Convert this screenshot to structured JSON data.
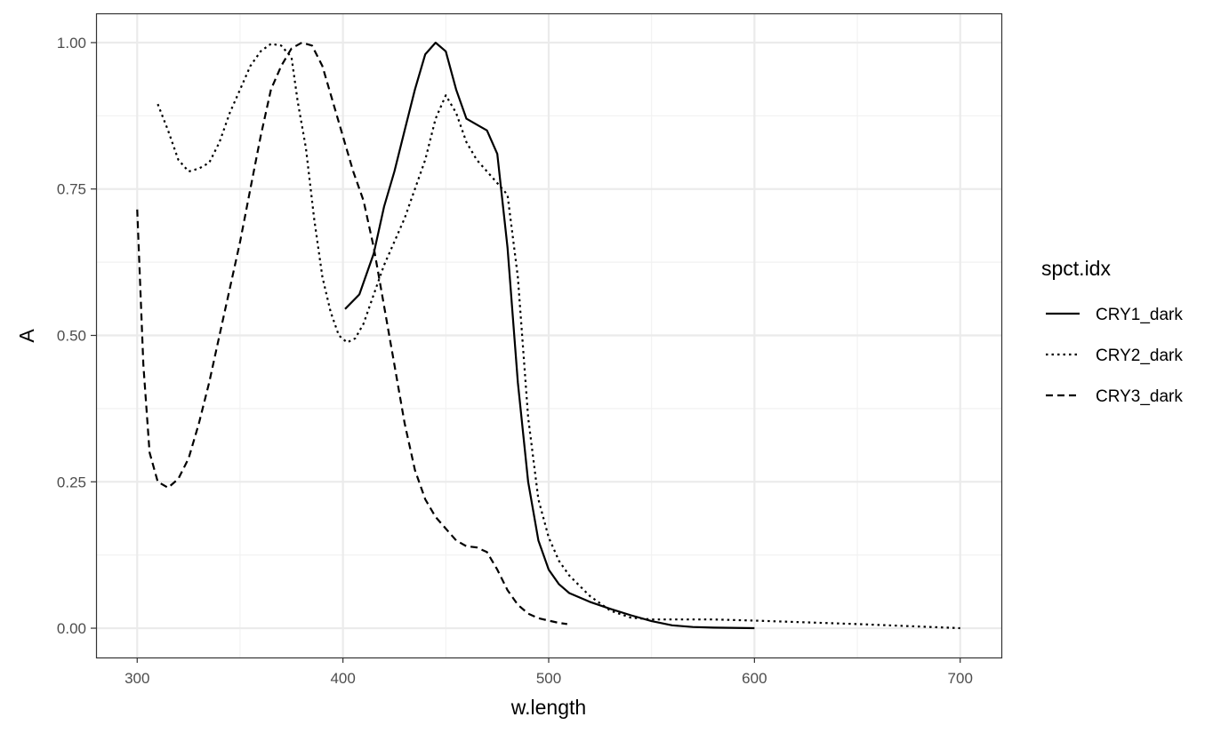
{
  "chart_data": {
    "type": "line",
    "title": "",
    "xlabel": "w.length",
    "ylabel": "A",
    "xlim": [
      280,
      720
    ],
    "ylim": [
      -0.05,
      1.05
    ],
    "x_ticks": [
      300,
      400,
      500,
      600,
      700
    ],
    "x_tick_labels": [
      "300",
      "400",
      "500",
      "600",
      "700"
    ],
    "y_ticks": [
      0,
      0.25,
      0.5,
      0.75,
      1.0
    ],
    "y_tick_labels": [
      "0.00",
      "0.25",
      "0.50",
      "0.75",
      "1.00"
    ],
    "grid": true,
    "legend": {
      "title": "spct.idx",
      "position": "right"
    },
    "series": [
      {
        "name": "CRY1_dark",
        "linetype": "solid",
        "points": [
          [
            401,
            0.545
          ],
          [
            408,
            0.57
          ],
          [
            415,
            0.64
          ],
          [
            420,
            0.72
          ],
          [
            425,
            0.78
          ],
          [
            430,
            0.85
          ],
          [
            435,
            0.92
          ],
          [
            440,
            0.98
          ],
          [
            445,
            1.0
          ],
          [
            450,
            0.985
          ],
          [
            455,
            0.92
          ],
          [
            460,
            0.87
          ],
          [
            465,
            0.86
          ],
          [
            470,
            0.85
          ],
          [
            475,
            0.81
          ],
          [
            480,
            0.65
          ],
          [
            485,
            0.42
          ],
          [
            490,
            0.25
          ],
          [
            495,
            0.15
          ],
          [
            500,
            0.1
          ],
          [
            505,
            0.075
          ],
          [
            510,
            0.06
          ],
          [
            520,
            0.045
          ],
          [
            530,
            0.033
          ],
          [
            540,
            0.022
          ],
          [
            550,
            0.012
          ],
          [
            560,
            0.005
          ],
          [
            570,
            0.002
          ],
          [
            580,
            0.001
          ],
          [
            600,
            0.0
          ]
        ]
      },
      {
        "name": "CRY2_dark",
        "linetype": "dotted",
        "points": [
          [
            310,
            0.895
          ],
          [
            315,
            0.85
          ],
          [
            320,
            0.8
          ],
          [
            325,
            0.78
          ],
          [
            330,
            0.785
          ],
          [
            335,
            0.795
          ],
          [
            340,
            0.83
          ],
          [
            345,
            0.88
          ],
          [
            350,
            0.92
          ],
          [
            355,
            0.96
          ],
          [
            360,
            0.985
          ],
          [
            365,
            0.998
          ],
          [
            370,
            0.995
          ],
          [
            375,
            0.975
          ],
          [
            378,
            0.9
          ],
          [
            382,
            0.82
          ],
          [
            386,
            0.7
          ],
          [
            390,
            0.6
          ],
          [
            394,
            0.54
          ],
          [
            398,
            0.5
          ],
          [
            402,
            0.488
          ],
          [
            406,
            0.495
          ],
          [
            410,
            0.52
          ],
          [
            415,
            0.57
          ],
          [
            420,
            0.62
          ],
          [
            425,
            0.66
          ],
          [
            430,
            0.7
          ],
          [
            435,
            0.75
          ],
          [
            440,
            0.8
          ],
          [
            445,
            0.87
          ],
          [
            450,
            0.91
          ],
          [
            455,
            0.88
          ],
          [
            460,
            0.83
          ],
          [
            465,
            0.8
          ],
          [
            470,
            0.78
          ],
          [
            475,
            0.76
          ],
          [
            480,
            0.74
          ],
          [
            485,
            0.6
          ],
          [
            490,
            0.36
          ],
          [
            495,
            0.22
          ],
          [
            500,
            0.155
          ],
          [
            505,
            0.115
          ],
          [
            510,
            0.09
          ],
          [
            520,
            0.055
          ],
          [
            530,
            0.03
          ],
          [
            540,
            0.018
          ],
          [
            550,
            0.015
          ],
          [
            580,
            0.015
          ],
          [
            600,
            0.013
          ],
          [
            650,
            0.007
          ],
          [
            700,
            0.0
          ]
        ]
      },
      {
        "name": "CRY3_dark",
        "linetype": "dashed",
        "points": [
          [
            300,
            0.715
          ],
          [
            303,
            0.45
          ],
          [
            306,
            0.3
          ],
          [
            310,
            0.25
          ],
          [
            315,
            0.24
          ],
          [
            320,
            0.255
          ],
          [
            325,
            0.29
          ],
          [
            330,
            0.35
          ],
          [
            335,
            0.42
          ],
          [
            340,
            0.5
          ],
          [
            345,
            0.58
          ],
          [
            350,
            0.66
          ],
          [
            355,
            0.75
          ],
          [
            360,
            0.84
          ],
          [
            365,
            0.92
          ],
          [
            370,
            0.96
          ],
          [
            375,
            0.99
          ],
          [
            380,
            1.0
          ],
          [
            385,
            0.995
          ],
          [
            390,
            0.96
          ],
          [
            395,
            0.9
          ],
          [
            400,
            0.84
          ],
          [
            405,
            0.78
          ],
          [
            410,
            0.73
          ],
          [
            415,
            0.65
          ],
          [
            420,
            0.55
          ],
          [
            425,
            0.45
          ],
          [
            430,
            0.35
          ],
          [
            435,
            0.27
          ],
          [
            440,
            0.22
          ],
          [
            445,
            0.19
          ],
          [
            450,
            0.17
          ],
          [
            455,
            0.15
          ],
          [
            460,
            0.14
          ],
          [
            465,
            0.138
          ],
          [
            470,
            0.13
          ],
          [
            475,
            0.1
          ],
          [
            480,
            0.065
          ],
          [
            485,
            0.04
          ],
          [
            490,
            0.025
          ],
          [
            495,
            0.017
          ],
          [
            500,
            0.013
          ],
          [
            505,
            0.009
          ],
          [
            509,
            0.007
          ]
        ]
      }
    ]
  }
}
